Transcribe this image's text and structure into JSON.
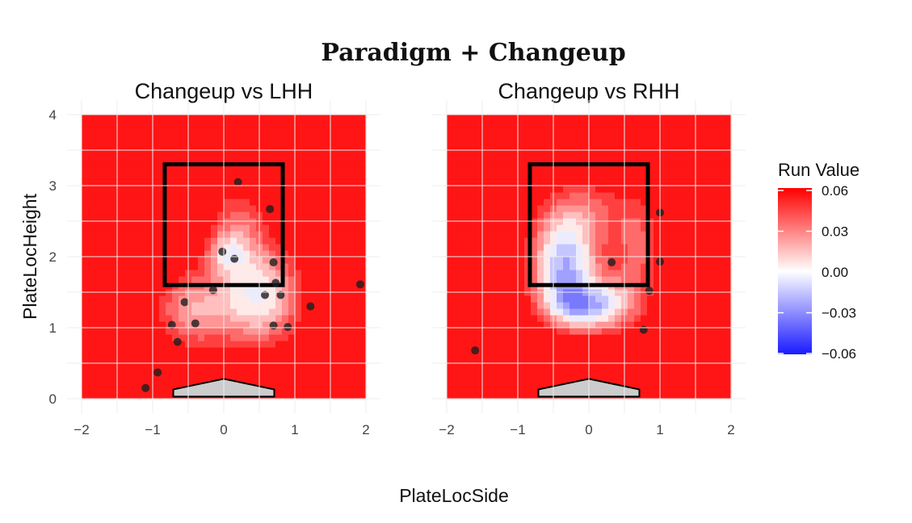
{
  "chart_data": {
    "type": "heatmap",
    "title": "Paradigm + Changeup",
    "xlabel": "PlateLocSide",
    "ylabel": "PlateLocHeight",
    "xlim": [
      -2,
      2
    ],
    "ylim": [
      0,
      4
    ],
    "x_ticks": [
      "−2",
      "−1",
      "0",
      "1",
      "2"
    ],
    "y_ticks": [
      "0",
      "1",
      "2",
      "3",
      "4"
    ],
    "strike_zone": {
      "x": [
        -0.83,
        0.83
      ],
      "y": [
        1.6,
        3.3
      ]
    },
    "home_plate": {
      "x": [
        -0.71,
        0.71
      ],
      "y": [
        0.03,
        0.28
      ]
    },
    "legend": {
      "title": "Run Value",
      "colors": {
        "high": "#ff0000",
        "mid": "#ffffff",
        "low": "#1a1aff"
      },
      "ticks": [
        "0.06",
        "0.03",
        "0.00",
        "−0.03",
        "−0.06"
      ],
      "values": [
        0.06,
        0.03,
        0.0,
        -0.03,
        -0.06
      ]
    },
    "panels": [
      {
        "title": "Changeup vs LHH",
        "x_range": [
          -2,
          2
        ],
        "points": [
          {
            "x": 0.2,
            "y": 3.05
          },
          {
            "x": 0.65,
            "y": 2.67
          },
          {
            "x": -0.02,
            "y": 2.07
          },
          {
            "x": 0.15,
            "y": 1.97
          },
          {
            "x": 0.7,
            "y": 1.92
          },
          {
            "x": 0.73,
            "y": 1.63
          },
          {
            "x": -0.15,
            "y": 1.53
          },
          {
            "x": 0.58,
            "y": 1.46
          },
          {
            "x": 0.8,
            "y": 1.46
          },
          {
            "x": -0.55,
            "y": 1.36
          },
          {
            "x": 1.22,
            "y": 1.3
          },
          {
            "x": -0.73,
            "y": 1.04
          },
          {
            "x": -0.4,
            "y": 1.06
          },
          {
            "x": 0.7,
            "y": 1.03
          },
          {
            "x": 0.9,
            "y": 1.01
          },
          {
            "x": -0.65,
            "y": 0.8
          },
          {
            "x": -0.93,
            "y": 0.37
          },
          {
            "x": -1.1,
            "y": 0.15
          },
          {
            "x": 1.92,
            "y": 1.61
          }
        ],
        "blobs": [
          {
            "x": 0.5,
            "y": 1.45,
            "sx": 0.42,
            "sy": 0.5,
            "amp": 0.075
          },
          {
            "x": 0.2,
            "y": 2.5,
            "sx": 0.3,
            "sy": 0.4,
            "amp": 0.035
          },
          {
            "x": -0.45,
            "y": 1.25,
            "sx": 0.38,
            "sy": 0.4,
            "amp": 0.05
          },
          {
            "x": 0.05,
            "y": 2.05,
            "sx": 0.2,
            "sy": 0.2,
            "amp": 0.04
          }
        ]
      },
      {
        "title": "Changeup vs RHH",
        "x_range": [
          -2,
          2
        ],
        "points": [
          {
            "x": 1.0,
            "y": 2.62
          },
          {
            "x": 1.0,
            "y": 1.93
          },
          {
            "x": 0.32,
            "y": 1.92
          },
          {
            "x": 0.85,
            "y": 1.52
          },
          {
            "x": 0.77,
            "y": 0.97
          },
          {
            "x": -1.6,
            "y": 0.68
          }
        ],
        "blobs": [
          {
            "x": -0.35,
            "y": 1.9,
            "sx": 0.34,
            "sy": 0.45,
            "amp": 0.09
          },
          {
            "x": -0.1,
            "y": 1.3,
            "sx": 0.38,
            "sy": 0.25,
            "amp": 0.07
          },
          {
            "x": -0.1,
            "y": 2.65,
            "sx": 0.45,
            "sy": 0.35,
            "amp": 0.035
          },
          {
            "x": 0.7,
            "y": 2.1,
            "sx": 0.25,
            "sy": 0.6,
            "amp": 0.035
          },
          {
            "x": 0.35,
            "y": 1.35,
            "sx": 0.3,
            "sy": 0.3,
            "amp": 0.03
          }
        ]
      }
    ]
  }
}
